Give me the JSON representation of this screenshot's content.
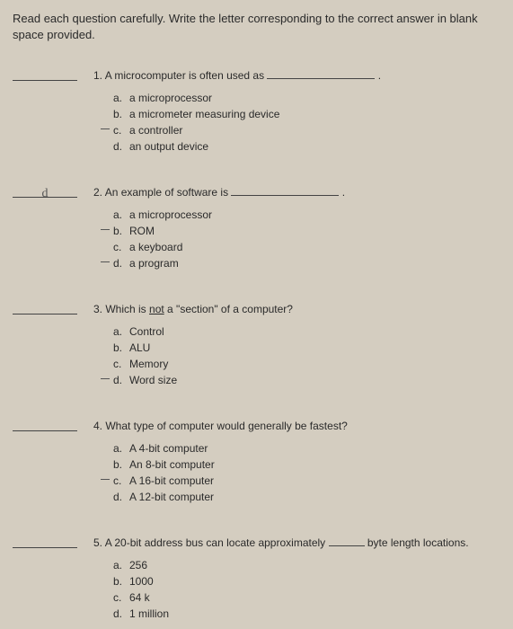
{
  "instructions": "Read each question carefully. Write the letter corresponding to the correct answer in blank space provided.",
  "questions": [
    {
      "num": "1.",
      "text_before": "A microcomputer is often used as ",
      "text_after": " .",
      "blank_written": "",
      "options": [
        {
          "letter": "a.",
          "text": "a microprocessor",
          "marked": false
        },
        {
          "letter": "b.",
          "text": "a micrometer measuring device",
          "marked": false
        },
        {
          "letter": "c.",
          "text": "a controller",
          "marked": true
        },
        {
          "letter": "d.",
          "text": "an output device",
          "marked": false
        }
      ]
    },
    {
      "num": "2.",
      "text_before": "An example of software is ",
      "text_after": " .",
      "blank_written": "d",
      "options": [
        {
          "letter": "a.",
          "text": "a microprocessor",
          "marked": false
        },
        {
          "letter": "b.",
          "text": "ROM",
          "marked": true
        },
        {
          "letter": "c.",
          "text": "a keyboard",
          "marked": false
        },
        {
          "letter": "d.",
          "text": "a program",
          "marked": true
        }
      ]
    },
    {
      "num": "3.",
      "text_html": "Which is <span class='underline'>not</span> a \"section\" of a computer?",
      "blank_written": "",
      "options": [
        {
          "letter": "a.",
          "text": "Control",
          "marked": false
        },
        {
          "letter": "b.",
          "text": "ALU",
          "marked": false
        },
        {
          "letter": "c.",
          "text": "Memory",
          "marked": false
        },
        {
          "letter": "d.",
          "text": "Word size",
          "marked": true
        }
      ]
    },
    {
      "num": "4.",
      "text_plain": "What type of computer would generally be fastest?",
      "blank_written": "",
      "options": [
        {
          "letter": "a.",
          "text": "A 4-bit computer",
          "marked": false
        },
        {
          "letter": "b.",
          "text": "An 8-bit computer",
          "marked": false
        },
        {
          "letter": "c.",
          "text": "A 16-bit computer",
          "marked": true
        },
        {
          "letter": "d.",
          "text": "A 12-bit computer",
          "marked": false
        }
      ]
    },
    {
      "num": "5.",
      "text_before": "A 20-bit address bus can locate approximately ",
      "text_after": " byte length locations.",
      "short_blank": true,
      "blank_written": "",
      "options": [
        {
          "letter": "a.",
          "text": "256",
          "marked": false
        },
        {
          "letter": "b.",
          "text": "1000",
          "marked": false
        },
        {
          "letter": "c.",
          "text": "64 k",
          "marked": false
        },
        {
          "letter": "d.",
          "text": "1 million",
          "marked": false
        }
      ]
    }
  ]
}
